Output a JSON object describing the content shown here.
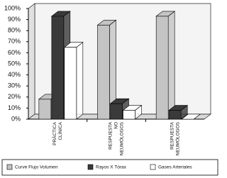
{
  "chart_data": {
    "type": "bar3d",
    "categories": [
      [
        "PRÁCTICA",
        "CLÍNICA"
      ],
      [
        "RESPUESTA",
        "NO",
        "NEUMÓLOGOS"
      ],
      [
        "RESPUESTA",
        "NEUMÓLOGOS"
      ]
    ],
    "series": [
      {
        "name": "Curve Flujo Volumen",
        "color": "#c4c4c4",
        "values": [
          18,
          85,
          93
        ]
      },
      {
        "name": "Rayos X Tórax",
        "color": "#3a3a3a",
        "values": [
          93,
          14,
          8
        ]
      },
      {
        "name": "Gases Arteriales",
        "color": "#ffffff",
        "values": [
          65,
          8,
          0
        ]
      }
    ],
    "ylim": [
      0,
      100
    ],
    "yticks": [
      {
        "value": 0,
        "label": "0%"
      },
      {
        "value": 10,
        "label": "10%"
      },
      {
        "value": 20,
        "label": "20%"
      },
      {
        "value": 30,
        "label": "30%"
      },
      {
        "value": 40,
        "label": "40%"
      },
      {
        "value": 50,
        "label": "50%"
      },
      {
        "value": 60,
        "label": "60%"
      },
      {
        "value": 70,
        "label": "70%"
      },
      {
        "value": 80,
        "label": "80%"
      },
      {
        "value": 90,
        "label": "90%"
      },
      {
        "value": 100,
        "label": "100%"
      }
    ],
    "legend": "bottom"
  }
}
